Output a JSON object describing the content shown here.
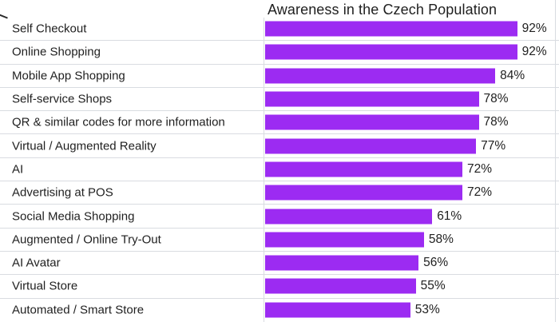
{
  "title": "Awareness in the Czech Population",
  "chart_data": {
    "type": "bar",
    "orientation": "horizontal",
    "title": "Awareness in the Czech Population",
    "categories": [
      "Self Checkout",
      "Online Shopping",
      "Mobile App Shopping",
      "Self-service Shops",
      "QR & similar codes for more information",
      "Virtual / Augmented Reality",
      "AI",
      "Advertising at POS",
      "Social Media Shopping",
      "Augmented / Online Try-Out",
      "AI Avatar",
      "Virtual Store",
      "Automated / Smart Store"
    ],
    "values": [
      92,
      92,
      84,
      78,
      78,
      77,
      72,
      72,
      61,
      58,
      56,
      55,
      53
    ],
    "value_labels": [
      "92%",
      "92%",
      "84%",
      "78%",
      "78%",
      "77%",
      "72%",
      "72%",
      "61%",
      "58%",
      "56%",
      "55%",
      "53%"
    ],
    "unit": "%",
    "xlim": [
      0,
      100
    ],
    "xlabel": "",
    "ylabel": "",
    "grid": "row-separators-only",
    "legend": "none",
    "bar_color": "#9c2bf2",
    "separator_color": "#d9dce1",
    "title_color": "#1f1f1f",
    "label_color": "#1f1f1f"
  }
}
